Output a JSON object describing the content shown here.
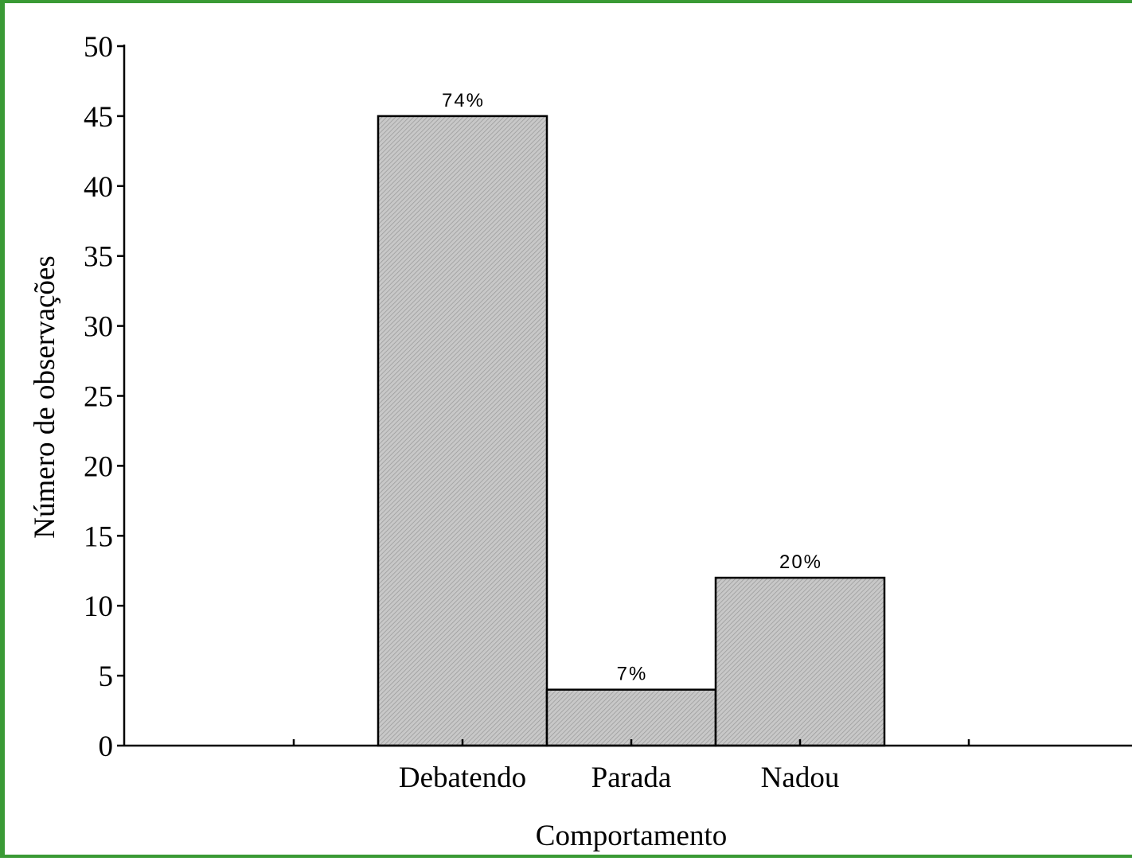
{
  "colors": {
    "frame_border": "#3a9a35",
    "bar_fill": "#c8c8c8",
    "bar_hatch": "#9a9a9a",
    "axis": "#000000"
  },
  "chart_data": {
    "type": "bar",
    "title": "",
    "xlabel": "Comportamento",
    "ylabel": "Número de observações",
    "categories": [
      "Debatendo",
      "Parada",
      "Nadou"
    ],
    "values": [
      45,
      4,
      12
    ],
    "data_labels": [
      "74%",
      "7%",
      "20%"
    ],
    "ylim": [
      0,
      50
    ],
    "yticks": [
      0,
      5,
      10,
      15,
      20,
      25,
      30,
      35,
      40,
      45,
      50
    ],
    "grid": false,
    "legend": "none",
    "bar_fill_pattern": "diagonal-hatch"
  }
}
